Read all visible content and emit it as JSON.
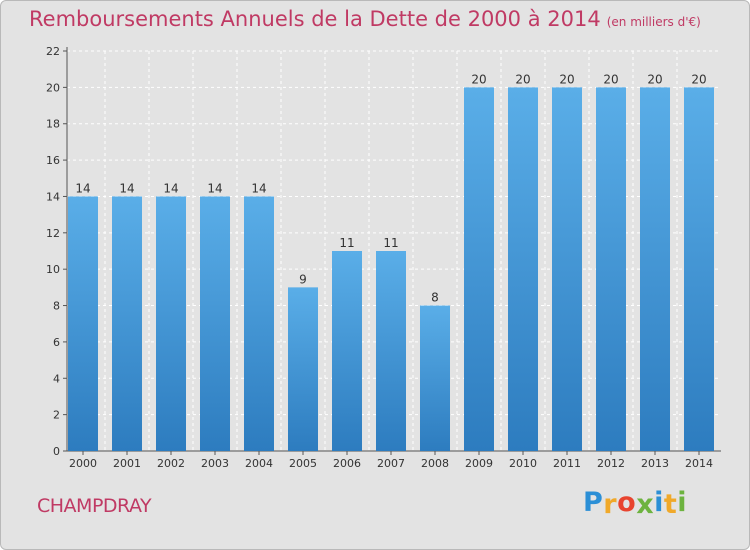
{
  "chart_data": {
    "type": "bar",
    "title": "Remboursements Annuels de la Dette de 2000 à 2014",
    "unit_label": "(en milliers d'€)",
    "categories": [
      "2000",
      "2001",
      "2002",
      "2003",
      "2004",
      "2005",
      "2006",
      "2007",
      "2008",
      "2009",
      "2010",
      "2011",
      "2012",
      "2013",
      "2014"
    ],
    "values": [
      14,
      14,
      14,
      14,
      14,
      9,
      11,
      11,
      8,
      20,
      20,
      20,
      20,
      20,
      20
    ],
    "ylim": [
      0,
      22
    ],
    "yticks": [
      0,
      2,
      4,
      6,
      8,
      10,
      12,
      14,
      16,
      18,
      20,
      22
    ],
    "grid": true,
    "data_labels": true,
    "colors": {
      "bar_top": "#5aaee8",
      "bar_bottom": "#2d7cbf",
      "grid": "#ffffff",
      "plot_bg": "#e3e3e3",
      "title": "#c03a64"
    }
  },
  "footer": {
    "commune": "CHAMPDRAY",
    "logo": {
      "letters": [
        "P",
        "r",
        "o",
        "x",
        "i",
        "t",
        "i"
      ],
      "colors": [
        "#2b8fd6",
        "#f0a92a",
        "#e8442f",
        "#6db33f",
        "#2b8fd6",
        "#f0a92a",
        "#6db33f"
      ]
    }
  }
}
